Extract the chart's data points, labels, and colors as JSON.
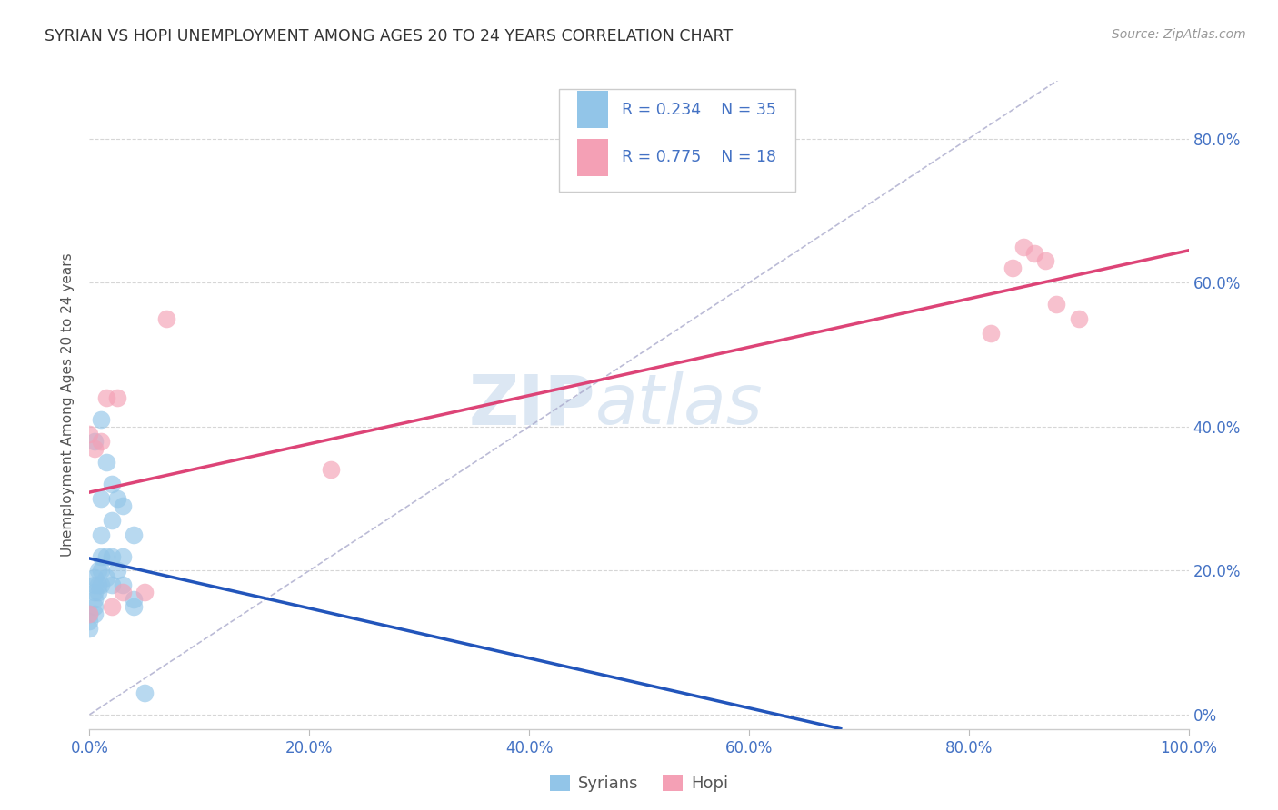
{
  "title": "SYRIAN VS HOPI UNEMPLOYMENT AMONG AGES 20 TO 24 YEARS CORRELATION CHART",
  "source": "Source: ZipAtlas.com",
  "ylabel_label": "Unemployment Among Ages 20 to 24 years",
  "syrians_color": "#92C5E8",
  "hopi_color": "#F4A0B5",
  "syrians_R": 0.234,
  "syrians_N": 35,
  "hopi_R": 0.775,
  "hopi_N": 18,
  "syrians_line_color": "#2255BB",
  "hopi_line_color": "#DD4477",
  "diagonal_color": "#AAAACC",
  "watermark_zip": "ZIP",
  "watermark_atlas": "atlas",
  "syrians_x": [
    0.0,
    0.0,
    0.0,
    0.005,
    0.005,
    0.005,
    0.005,
    0.005,
    0.005,
    0.008,
    0.008,
    0.008,
    0.01,
    0.01,
    0.01,
    0.01,
    0.01,
    0.015,
    0.015,
    0.02,
    0.02,
    0.02,
    0.025,
    0.025,
    0.03,
    0.03,
    0.04,
    0.04,
    0.005,
    0.01,
    0.015,
    0.02,
    0.03,
    0.04,
    0.05
  ],
  "syrians_y": [
    0.12,
    0.13,
    0.14,
    0.14,
    0.15,
    0.16,
    0.17,
    0.18,
    0.19,
    0.17,
    0.18,
    0.2,
    0.18,
    0.2,
    0.22,
    0.25,
    0.3,
    0.19,
    0.22,
    0.18,
    0.22,
    0.27,
    0.2,
    0.3,
    0.18,
    0.22,
    0.15,
    0.16,
    0.38,
    0.41,
    0.35,
    0.32,
    0.29,
    0.25,
    0.03
  ],
  "hopi_x": [
    0.0,
    0.0,
    0.005,
    0.01,
    0.015,
    0.02,
    0.025,
    0.03,
    0.05,
    0.07,
    0.22,
    0.82,
    0.84,
    0.85,
    0.86,
    0.87,
    0.88,
    0.9
  ],
  "hopi_y": [
    0.14,
    0.39,
    0.37,
    0.38,
    0.44,
    0.15,
    0.44,
    0.17,
    0.17,
    0.55,
    0.34,
    0.53,
    0.62,
    0.65,
    0.64,
    0.63,
    0.57,
    0.55
  ],
  "xlim": [
    0.0,
    1.0
  ],
  "ylim": [
    -0.02,
    0.88
  ],
  "xticks": [
    0.0,
    0.2,
    0.4,
    0.6,
    0.8,
    1.0
  ],
  "yticks_right": [
    0.0,
    0.2,
    0.4,
    0.6,
    0.8
  ],
  "ytick_labels_right": [
    "0%",
    "20.0%",
    "40.0%",
    "60.0%",
    "80.0%"
  ],
  "xtick_labels": [
    "0.0%",
    "20.0%",
    "40.0%",
    "60.0%",
    "80.0%",
    "100.0%"
  ],
  "background_color": "#FFFFFF",
  "grid_color": "#CCCCCC",
  "title_color": "#333333",
  "axis_label_color": "#555555",
  "tick_color": "#4472C4"
}
